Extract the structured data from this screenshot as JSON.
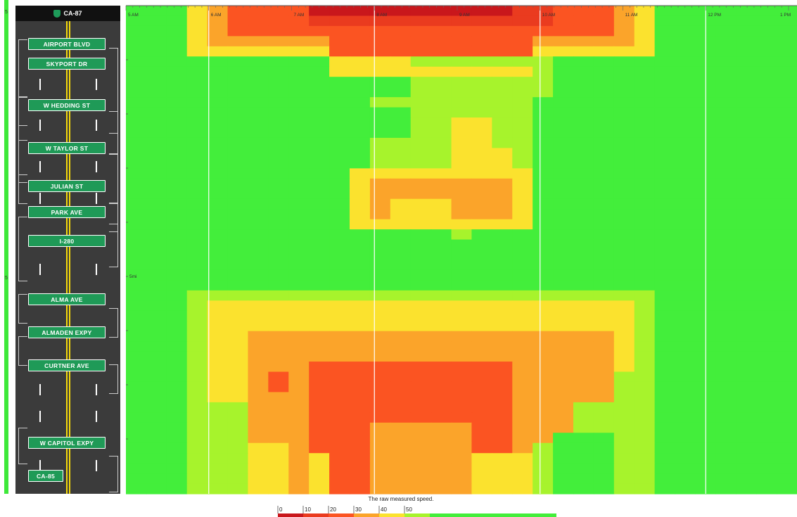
{
  "road": {
    "route": "CA-87",
    "exits": [
      "AIRPORT BLVD",
      "SKYPORT DR",
      "W HEDDING ST",
      "W TAYLOR ST",
      "JULIAN ST",
      "PARK AVE",
      "I-280",
      "ALMA AVE",
      "ALMADEN EXPY",
      "CURTNER AVE",
      "W CAPITOL EXPY",
      "CA-85"
    ]
  },
  "left_strip": {
    "top_label": "5",
    "mid_label": "5"
  },
  "colors": {
    "c0": "#c9171c",
    "c10": "#ea3b1f",
    "c20": "#fb5422",
    "c30": "#fba42a",
    "c40": "#fbe22e",
    "c45": "#a7f32c",
    "c50": "#43ee3b"
  },
  "chart_data": {
    "type": "heatmap",
    "title": "",
    "x_ticks": [
      "5 AM",
      "6 AM",
      "7 AM",
      "8 AM",
      "9 AM",
      "10 AM",
      "11 AM",
      "12 PM",
      "1 PM"
    ],
    "y_ticks": [
      "5mi"
    ],
    "legend_title": "The raw measured speed.",
    "legend": [
      {
        "label": "0",
        "color": "#c9171c"
      },
      {
        "label": "10",
        "color": "#ea3b1f"
      },
      {
        "label": "20",
        "color": "#fb5422"
      },
      {
        "label": "30",
        "color": "#fba42a"
      },
      {
        "label": "40",
        "color": "#fbe22e"
      },
      {
        "label": "50",
        "color": "#a7f32c"
      },
      {
        "label": "",
        "color": "#43ee3b"
      }
    ],
    "x_range": [
      "5 AM",
      "1 PM"
    ],
    "grid": true
  }
}
